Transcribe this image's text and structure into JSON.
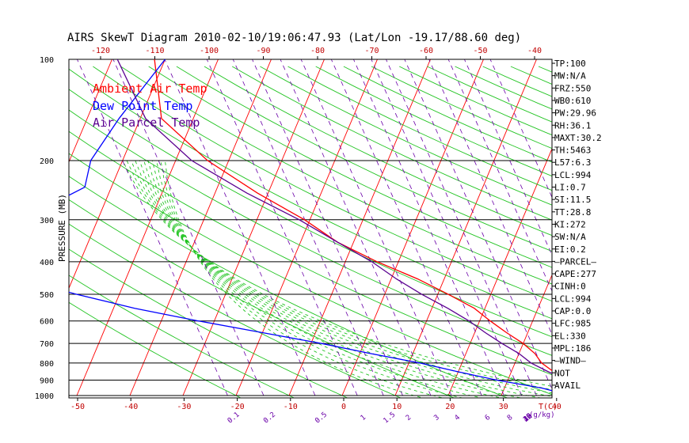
{
  "chart_data": {
    "type": "line",
    "title": "AIRS SkewT Diagram 2010-02-10/19:06:47.93 (Lat/Lon -19.17/88.60 deg)",
    "ylabel": "PRESSURE (MB)",
    "pressure_ticks": [
      100,
      200,
      300,
      400,
      500,
      600,
      700,
      800,
      900,
      1000
    ],
    "top_temp_ticks": [
      -120,
      -110,
      -100,
      -90,
      -80,
      -70,
      -60,
      -50,
      -40
    ],
    "bottom_temp_ticks": [
      -50,
      -40,
      -30,
      -20,
      -10,
      0,
      10,
      20,
      30,
      40
    ],
    "bottom_temp_unit": "T(C)",
    "mixing_ratio_labels": [
      "0.1",
      "0.2",
      "0.5",
      "1",
      "1.5",
      "2",
      "3",
      "4",
      "6",
      "8",
      "10",
      "12",
      "15",
      "20",
      "25",
      "30",
      "40"
    ],
    "mixing_ratio_unit": "(g/kg)",
    "legend": [
      {
        "label": "Ambient Air Temp",
        "color": "#ff0000"
      },
      {
        "label": "Dew Point Temp",
        "color": "#0000ff"
      },
      {
        "label": "Air Parcel Temp",
        "color": "#5a0090"
      }
    ],
    "series": [
      {
        "name": "Ambient Air Temp",
        "color": "#ff0000",
        "points": [
          [
            100,
            -82
          ],
          [
            150,
            -76
          ],
          [
            200,
            -64
          ],
          [
            250,
            -52
          ],
          [
            300,
            -41
          ],
          [
            350,
            -33
          ],
          [
            400,
            -24
          ],
          [
            450,
            -15
          ],
          [
            500,
            -8
          ],
          [
            550,
            -2
          ],
          [
            600,
            2
          ],
          [
            650,
            6
          ],
          [
            700,
            10
          ],
          [
            750,
            13
          ],
          [
            800,
            15
          ],
          [
            850,
            18
          ],
          [
            900,
            21
          ],
          [
            950,
            25
          ],
          [
            990,
            27
          ]
        ]
      },
      {
        "name": "Dew Point Temp",
        "color": "#0000ff",
        "points": [
          [
            100,
            -80
          ],
          [
            150,
            -84
          ],
          [
            200,
            -86
          ],
          [
            240,
            -85
          ],
          [
            270,
            -90
          ],
          [
            300,
            -93
          ],
          [
            350,
            -96
          ],
          [
            400,
            -97
          ],
          [
            450,
            -90
          ],
          [
            500,
            -78
          ],
          [
            550,
            -66
          ],
          [
            600,
            -53
          ],
          [
            650,
            -40
          ],
          [
            700,
            -28
          ],
          [
            750,
            -18
          ],
          [
            800,
            -8
          ],
          [
            850,
            0
          ],
          [
            900,
            8
          ],
          [
            950,
            17
          ],
          [
            990,
            22
          ]
        ]
      },
      {
        "name": "Air Parcel Temp",
        "color": "#5a0090",
        "points": [
          [
            100,
            -89
          ],
          [
            150,
            -79
          ],
          [
            200,
            -67
          ],
          [
            250,
            -54
          ],
          [
            300,
            -42
          ],
          [
            350,
            -33
          ],
          [
            400,
            -25
          ],
          [
            450,
            -19
          ],
          [
            500,
            -13
          ],
          [
            550,
            -7
          ],
          [
            600,
            -2
          ],
          [
            650,
            2
          ],
          [
            700,
            6
          ],
          [
            750,
            10
          ],
          [
            800,
            13
          ],
          [
            850,
            17
          ],
          [
            900,
            21
          ],
          [
            950,
            24
          ],
          [
            990,
            27
          ]
        ]
      }
    ],
    "grid": true
  },
  "indices": [
    "TP:100",
    "MW:N/A",
    "FRZ:550",
    "WB0:610",
    "PW:29.96",
    "RH:36.1",
    "MAXT:30.2",
    "TH:5463",
    "L57:6.3",
    "LCL:994",
    "LI:0.7",
    "SI:11.5",
    "TT:28.8",
    "KI:272",
    "SW:N/A",
    "EI:0.2",
    "—PARCEL—",
    "CAPE:277",
    "CINH:0",
    "LCL:994",
    "CAP:0.0",
    "LFC:985",
    "EL:330",
    "MPL:186",
    "—WIND—",
    "NOT",
    "AVAIL"
  ]
}
